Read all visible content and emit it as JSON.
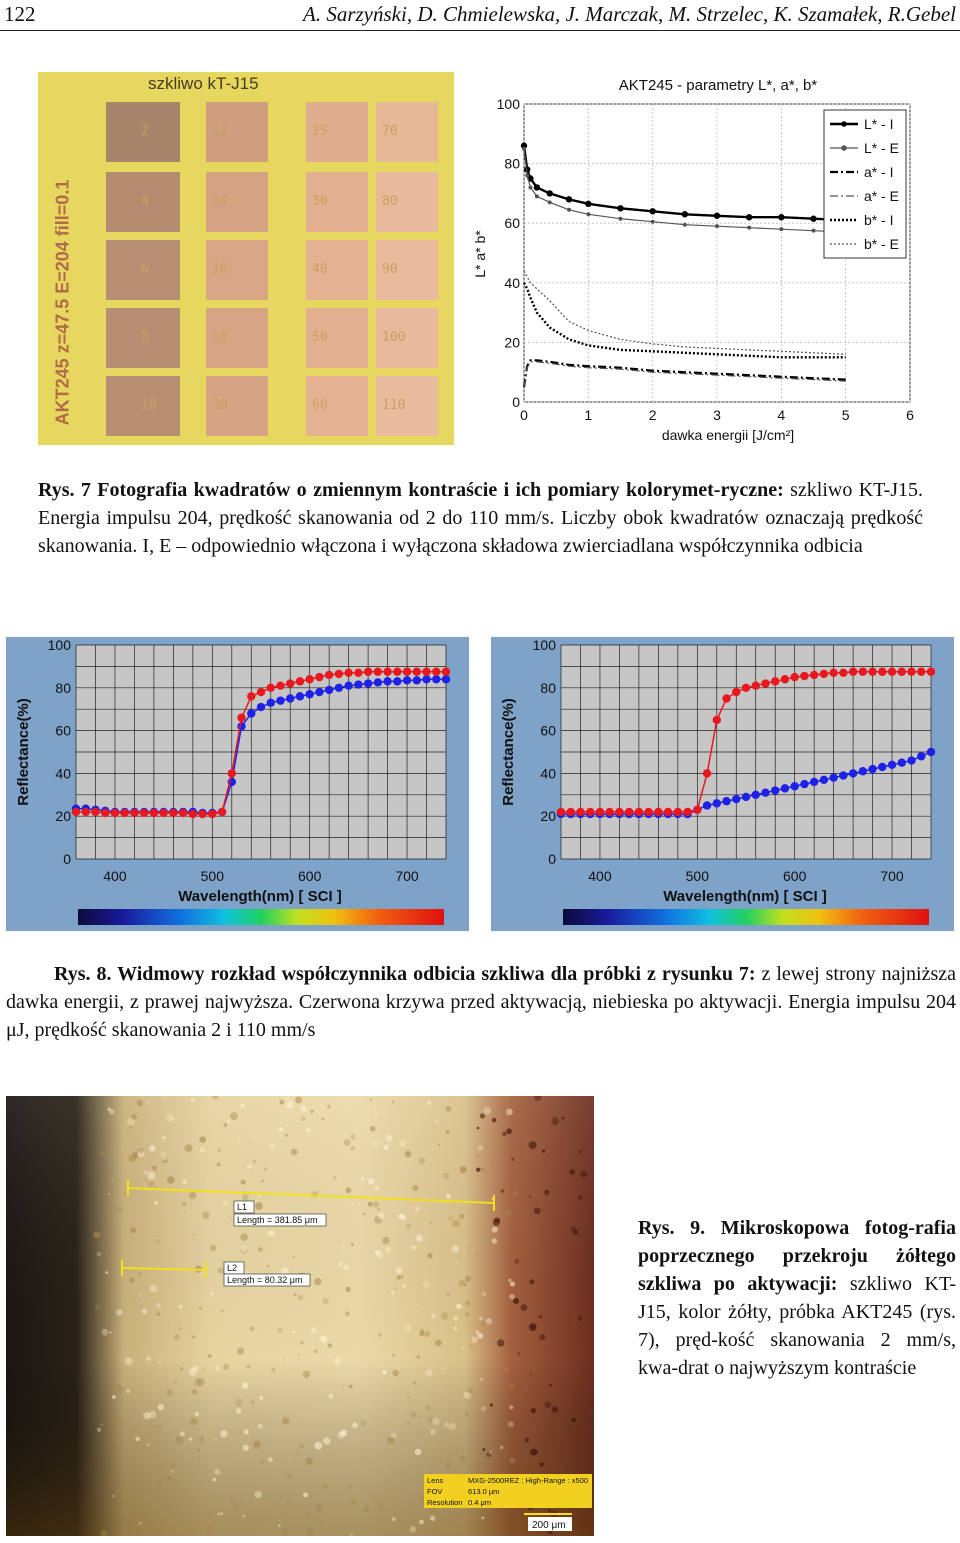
{
  "header": {
    "page_number": "122",
    "running_head": "A. Sarzyński, D. Chmielewska, J. Marczak, M. Strzelec, K. Szamałek, R.Gebel"
  },
  "fig7": {
    "photo": {
      "glass_label": "szkliwo   kT-J15",
      "side_label": "AKT245  z=47.5  E=204  fill=0.1",
      "columns": [
        [
          "2",
          "4",
          "6",
          "8",
          "10"
        ],
        [
          "12",
          "14",
          "16",
          "18",
          "20"
        ],
        [
          "25",
          "30",
          "40",
          "50",
          "60"
        ],
        [
          "70",
          "80",
          "90",
          "100",
          "110"
        ]
      ],
      "swatch_colors": [
        [
          "#a8856a",
          "#b38c70",
          "#b88f72",
          "#b88e72",
          "#b98f73"
        ],
        [
          "#cf9f80",
          "#d3a383",
          "#d8a686",
          "#d6a585",
          "#d5a484"
        ],
        [
          "#dfae8e",
          "#e2b192",
          "#e3b393",
          "#e2b192",
          "#e4b394"
        ],
        [
          "#e6b898",
          "#e8ba9b",
          "#e9bb9c",
          "#e8ba9b",
          "#e9bc9d"
        ]
      ]
    },
    "chart_data": {
      "type": "line",
      "title": "AKT245 - parametry L*, a*, b*",
      "xlabel": "dawka energii [J/cm²]",
      "ylabel": "L* a* b*",
      "xlim": [
        0,
        6
      ],
      "ylim": [
        0,
        100
      ],
      "x_ticks": [
        "0",
        "1",
        "2",
        "3",
        "4",
        "5",
        "6"
      ],
      "y_ticks": [
        "0",
        "20",
        "40",
        "60",
        "80",
        "100"
      ],
      "legend_position": "top-right",
      "grid": true,
      "series": [
        {
          "name": "L* - I",
          "x": [
            0,
            0.05,
            0.1,
            0.2,
            0.4,
            0.7,
            1.0,
            1.5,
            2.0,
            2.5,
            3.0,
            3.5,
            4.0,
            4.5,
            5.0
          ],
          "y": [
            86,
            78,
            75,
            72,
            70,
            68,
            66.5,
            65,
            64,
            63,
            62.5,
            62,
            62,
            61.5,
            61
          ]
        },
        {
          "name": "L* - E",
          "x": [
            0,
            0.05,
            0.1,
            0.2,
            0.4,
            0.7,
            1.0,
            1.5,
            2.0,
            2.5,
            3.0,
            3.5,
            4.0,
            4.5,
            5.0
          ],
          "y": [
            85,
            76,
            72,
            69,
            67,
            64.5,
            63,
            61.5,
            60.5,
            59.5,
            59,
            58.5,
            58,
            57.5,
            57
          ]
        },
        {
          "name": "a* - I",
          "x": [
            0,
            0.05,
            0.1,
            0.2,
            0.4,
            0.7,
            1.0,
            1.5,
            2.0,
            2.5,
            3.0,
            3.5,
            4.0,
            4.5,
            5.0
          ],
          "y": [
            5,
            12,
            14,
            14,
            13.5,
            12.5,
            12,
            11.5,
            10.5,
            10,
            9.5,
            9,
            8.5,
            8,
            7.5
          ]
        },
        {
          "name": "a* - E",
          "x": [
            0,
            0.05,
            0.1,
            0.2,
            0.4,
            0.7,
            1.0,
            1.5,
            2.0,
            2.5,
            3.0,
            3.5,
            4.0,
            4.5,
            5.0
          ],
          "y": [
            5,
            11.5,
            13.5,
            13.5,
            13,
            12,
            11.5,
            11,
            10,
            9.5,
            9,
            8.5,
            8,
            7.5,
            7
          ]
        },
        {
          "name": "b* - I",
          "x": [
            0,
            0.05,
            0.1,
            0.2,
            0.4,
            0.7,
            1.0,
            1.5,
            2.0,
            2.5,
            3.0,
            3.5,
            4.0,
            4.5,
            5.0
          ],
          "y": [
            40,
            38,
            35,
            30,
            25,
            21,
            19,
            17.5,
            17,
            16.5,
            16,
            15.5,
            15,
            15,
            15
          ]
        },
        {
          "name": "b* - E",
          "x": [
            0,
            0.05,
            0.1,
            0.2,
            0.4,
            0.7,
            1.0,
            1.5,
            2.0,
            2.5,
            3.0,
            3.5,
            4.0,
            4.5,
            5.0
          ],
          "y": [
            44,
            42,
            40,
            38,
            34,
            27,
            24,
            21,
            19.5,
            18.5,
            18,
            17.5,
            17,
            16.5,
            16
          ]
        }
      ],
      "series_styles": [
        {
          "color": "#000000",
          "dash": "",
          "width": 2.4,
          "marker": "dot"
        },
        {
          "color": "#555555",
          "dash": "",
          "width": 1.2,
          "marker": "star"
        },
        {
          "color": "#000000",
          "dash": "8,3,2,3",
          "width": 2.2,
          "marker": ""
        },
        {
          "color": "#555555",
          "dash": "8,3,2,3",
          "width": 1.2,
          "marker": ""
        },
        {
          "color": "#000000",
          "dash": "2,2",
          "width": 2.4,
          "marker": ""
        },
        {
          "color": "#555555",
          "dash": "2,2",
          "width": 1.2,
          "marker": ""
        }
      ]
    },
    "caption": {
      "label": "Rys. 7 Fotografia kwadratów o zmiennym kontraście i ich pomiary kolorymet-ryczne:",
      "text": " szkliwo KT-J15. Energia impulsu 204, prędkość skanowania od 2 do 110 mm/s. Liczby obok kwadratów oznaczają prędkość skanowania. I, E – odpowiednio włączona i wyłączona składowa zwierciadlana współczynnika odbicia"
    }
  },
  "fig8": {
    "chart_data": [
      {
        "type": "line",
        "title": "",
        "xlabel": "Wavelength(nm) [ SCI ]",
        "ylabel": "Reflectance(%)",
        "xlim": [
          360,
          740
        ],
        "ylim": [
          0,
          100
        ],
        "x_ticks": [
          "400",
          "500",
          "600",
          "700"
        ],
        "y_ticks": [
          "0",
          "20",
          "40",
          "60",
          "80",
          "100"
        ],
        "grid": true,
        "x": [
          360,
          370,
          380,
          390,
          400,
          410,
          420,
          430,
          440,
          450,
          460,
          470,
          480,
          490,
          500,
          510,
          520,
          530,
          540,
          550,
          560,
          570,
          580,
          590,
          600,
          610,
          620,
          630,
          640,
          650,
          660,
          670,
          680,
          690,
          700,
          710,
          720,
          730,
          740
        ],
        "series": [
          {
            "values": [
              22,
              22,
              22,
              21.5,
              21.5,
              21.5,
              21.5,
              21.5,
              21.5,
              21.5,
              21.5,
              21.5,
              21,
              21,
              21,
              22,
              40,
              66,
              76,
              78,
              80,
              81,
              82,
              83,
              84,
              85,
              86,
              86.5,
              87,
              87,
              87.5,
              87.5,
              87.5,
              87.5,
              87.5,
              87.5,
              87.5,
              87.5,
              87.5
            ],
            "color": "#e8181e"
          },
          {
            "values": [
              23.5,
              23.5,
              23,
              22.5,
              22,
              22,
              22,
              22,
              22,
              22,
              22,
              22,
              22,
              21.5,
              21.5,
              22,
              36,
              62,
              68,
              71,
              73,
              74,
              75,
              76,
              77,
              78,
              79,
              80,
              81,
              81.5,
              82,
              82.5,
              83,
              83,
              83.5,
              83.5,
              84,
              84,
              84
            ],
            "color": "#1e22e8"
          }
        ]
      },
      {
        "type": "line",
        "title": "",
        "xlabel": "Wavelength(nm) [ SCI ]",
        "ylabel": "Reflectance(%)",
        "xlim": [
          360,
          740
        ],
        "ylim": [
          0,
          100
        ],
        "x_ticks": [
          "400",
          "500",
          "600",
          "700"
        ],
        "y_ticks": [
          "0",
          "20",
          "40",
          "60",
          "80",
          "100"
        ],
        "grid": true,
        "x": [
          360,
          370,
          380,
          390,
          400,
          410,
          420,
          430,
          440,
          450,
          460,
          470,
          480,
          490,
          500,
          510,
          520,
          530,
          540,
          550,
          560,
          570,
          580,
          590,
          600,
          610,
          620,
          630,
          640,
          650,
          660,
          670,
          680,
          690,
          700,
          710,
          720,
          730,
          740
        ],
        "series": [
          {
            "values": [
              22,
              22,
              22,
              22,
              22,
              22,
              22,
              22,
              22,
              22,
              22,
              22,
              22,
              22,
              23,
              40,
              65,
              75,
              78,
              80,
              81,
              82,
              83,
              84,
              85,
              85.5,
              86,
              86.5,
              87,
              87,
              87.5,
              87.5,
              87.5,
              87.5,
              87.5,
              87.5,
              87.5,
              87.5,
              87.5
            ],
            "color": "#e8181e"
          },
          {
            "values": [
              21,
              21,
              21,
              21,
              21,
              21,
              21,
              21,
              21,
              21,
              21,
              21,
              21,
              21,
              23,
              25,
              26,
              27,
              28,
              29,
              30,
              31,
              32,
              33,
              34,
              35,
              36,
              37,
              38,
              39,
              40,
              41,
              42,
              43,
              44,
              45,
              46,
              48,
              50
            ],
            "color": "#1e22e8"
          }
        ]
      }
    ],
    "caption": {
      "label": "Rys. 8. Widmowy rozkład współczynnika odbicia szkliwa dla próbki z rysunku 7:",
      "text": " z lewej strony najniższa dawka energii, z prawej najwyższa. Czerwona krzywa przed aktywacją, niebieska po aktywacji. Energia impulsu 204 μJ, prędkość skanowania 2 i 110 mm/s"
    }
  },
  "fig9": {
    "measure_1": {
      "name": "L1",
      "length": "Length = 381.85 μm"
    },
    "measure_2": {
      "name": "L2",
      "length": "Length = 80.32 μm"
    },
    "info_rows": [
      {
        "key": "Lens",
        "value": "MXG-2500REZ : High-Range : x500"
      },
      {
        "key": "FOV",
        "value": "613.0 μm"
      },
      {
        "key": "Resolution",
        "value": "0.4 μm"
      }
    ],
    "scale_bar": "200 μm",
    "caption": {
      "label": "Rys. 9. Mikroskopowa fotog-rafia poprzecznego przekroju żółtego szkliwa po aktywacji:",
      "text": " szkliwo KT-J15, kolor żółty, próbka AKT245 (rys. 7), pręd-kość skanowania 2 mm/s, kwa-drat o najwyższym kontraście"
    }
  }
}
